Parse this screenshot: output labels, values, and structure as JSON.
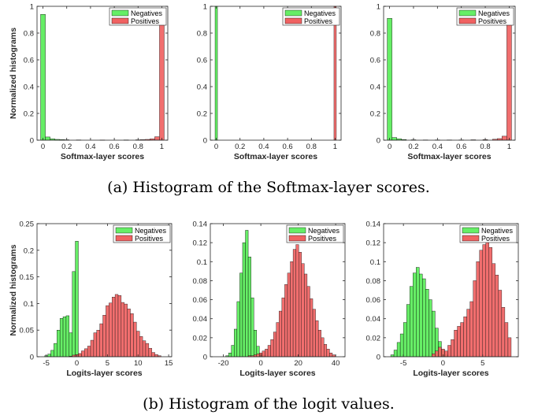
{
  "captions": {
    "a": "(a) Histogram of the Softmax-layer scores.",
    "b": "(b) Histogram of the logit values."
  },
  "colors": {
    "negatives": "#66ee66",
    "positives": "#f06262"
  },
  "chart_data": [
    {
      "type": "bar",
      "subplot": "softmax-1",
      "xlabel": "Softmax-layer scores",
      "ylabel": "Normalized histograms",
      "xlim": [
        -0.05,
        1.05
      ],
      "ylim": [
        0,
        1
      ],
      "xticks": [
        "0",
        "0.2",
        "0.4",
        "0.6",
        "0.8",
        "1"
      ],
      "yticks": [
        "0",
        "0.2",
        "0.4",
        "0.6",
        "0.8",
        "1"
      ],
      "legend": {
        "position": "top-right",
        "entries": [
          "Negatives",
          "Positives"
        ]
      },
      "bin_width": 0.04,
      "series": [
        {
          "name": "Negatives",
          "x": [
            0.0,
            0.04,
            0.08,
            0.12,
            0.16,
            0.2,
            0.3,
            0.5,
            0.7,
            0.9
          ],
          "values": [
            0.94,
            0.024,
            0.01,
            0.006,
            0.004,
            0.003,
            0.002,
            0.001,
            0.001,
            0.001
          ]
        },
        {
          "name": "Positives",
          "x": [
            0.5,
            0.7,
            0.8,
            0.84,
            0.88,
            0.92,
            0.96,
            1.0
          ],
          "values": [
            0.001,
            0.002,
            0.003,
            0.004,
            0.006,
            0.01,
            0.026,
            0.94
          ]
        }
      ]
    },
    {
      "type": "bar",
      "subplot": "softmax-2",
      "xlabel": "Softmax-layer scores",
      "ylabel": "",
      "xlim": [
        -0.05,
        1.05
      ],
      "ylim": [
        0,
        1
      ],
      "xticks": [
        "0",
        "0.2",
        "0.4",
        "0.6",
        "0.8",
        "1"
      ],
      "yticks": [
        "0",
        "0.2",
        "0.4",
        "0.6",
        "0.8",
        "1"
      ],
      "legend": {
        "position": "top-right",
        "entries": [
          "Negatives",
          "Positives"
        ]
      },
      "bin_width": 0.02,
      "series": [
        {
          "name": "Negatives",
          "x": [
            0.0
          ],
          "values": [
            1.0
          ]
        },
        {
          "name": "Positives",
          "x": [
            1.0
          ],
          "values": [
            1.0
          ]
        }
      ]
    },
    {
      "type": "bar",
      "subplot": "softmax-3",
      "xlabel": "Softmax-layer scores",
      "ylabel": "",
      "xlim": [
        -0.05,
        1.05
      ],
      "ylim": [
        0,
        1
      ],
      "xticks": [
        "0",
        "0.2",
        "0.4",
        "0.6",
        "0.8",
        "1"
      ],
      "yticks": [
        "0",
        "0.2",
        "0.4",
        "0.6",
        "0.8",
        "1"
      ],
      "legend": {
        "position": "top-right",
        "entries": [
          "Negatives",
          "Positives"
        ]
      },
      "bin_width": 0.04,
      "series": [
        {
          "name": "Negatives",
          "x": [
            0.0,
            0.04,
            0.08,
            0.12,
            0.2,
            0.4,
            0.6,
            0.8
          ],
          "values": [
            0.91,
            0.02,
            0.01,
            0.005,
            0.003,
            0.002,
            0.002,
            0.002
          ]
        },
        {
          "name": "Positives",
          "x": [
            0.3,
            0.5,
            0.7,
            0.8,
            0.88,
            0.92,
            0.96,
            1.0
          ],
          "values": [
            0.002,
            0.002,
            0.003,
            0.004,
            0.007,
            0.012,
            0.03,
            0.91
          ]
        }
      ]
    },
    {
      "type": "bar",
      "subplot": "logits-1",
      "xlabel": "Logits-layer scores",
      "ylabel": "Normalized histograms",
      "xlim": [
        -6.5,
        15.5
      ],
      "ylim": [
        0,
        0.25
      ],
      "xticks": [
        "-5",
        "0",
        "5",
        "10",
        "15"
      ],
      "yticks": [
        "0",
        "0.05",
        "0.1",
        "0.15",
        "0.2",
        "0.25"
      ],
      "legend": {
        "position": "top-right",
        "entries": [
          "Negatives",
          "Positives"
        ]
      },
      "bin_width": 0.5,
      "series": [
        {
          "name": "Negatives",
          "x": [
            -5.0,
            -4.5,
            -4.0,
            -3.5,
            -3.0,
            -2.5,
            -2.0,
            -1.5,
            -1.0,
            -0.5,
            0.0,
            0.5
          ],
          "values": [
            0.002,
            0.005,
            0.012,
            0.025,
            0.05,
            0.072,
            0.075,
            0.077,
            0.045,
            0.16,
            0.217,
            0.005
          ]
        },
        {
          "name": "Positives",
          "x": [
            -1.0,
            -0.5,
            0.0,
            0.5,
            1.0,
            1.5,
            2.0,
            2.5,
            3.0,
            3.5,
            4.0,
            4.5,
            5.0,
            5.5,
            6.0,
            6.5,
            7.0,
            7.5,
            8.0,
            8.5,
            9.0,
            9.5,
            10.0,
            10.5,
            11.0,
            11.5,
            12.0,
            12.5,
            13.0,
            13.5
          ],
          "values": [
            0.001,
            0.003,
            0.004,
            0.006,
            0.011,
            0.015,
            0.02,
            0.031,
            0.045,
            0.05,
            0.062,
            0.078,
            0.096,
            0.101,
            0.112,
            0.117,
            0.115,
            0.102,
            0.099,
            0.09,
            0.081,
            0.065,
            0.048,
            0.038,
            0.03,
            0.025,
            0.016,
            0.008,
            0.004,
            0.002
          ]
        }
      ]
    },
    {
      "type": "bar",
      "subplot": "logits-2",
      "xlabel": "Logits-layer scores",
      "ylabel": "",
      "xlim": [
        -27,
        45
      ],
      "ylim": [
        0,
        0.14
      ],
      "xticks": [
        "-20",
        "0",
        "20",
        "40"
      ],
      "yticks": [
        "0",
        "0.02",
        "0.04",
        "0.06",
        "0.08",
        "0.1",
        "0.12",
        "0.14"
      ],
      "legend": {
        "position": "top-right",
        "entries": [
          "Negatives",
          "Positives"
        ]
      },
      "bin_width": 1.5,
      "series": [
        {
          "name": "Negatives",
          "x": [
            -18.0,
            -16.5,
            -15.0,
            -13.5,
            -12.0,
            -10.5,
            -9.0,
            -7.5,
            -6.0,
            -4.5,
            -3.0,
            -1.5,
            0.0,
            1.5
          ],
          "values": [
            0.001,
            0.004,
            0.012,
            0.029,
            0.058,
            0.088,
            0.12,
            0.133,
            0.105,
            0.062,
            0.028,
            0.011,
            0.003,
            0.001
          ]
        },
        {
          "name": "Positives",
          "x": [
            -6.0,
            -4.5,
            -3.0,
            -1.5,
            0.0,
            1.5,
            3.0,
            4.5,
            6.0,
            7.5,
            9.0,
            10.5,
            12.0,
            13.5,
            15.0,
            16.5,
            18.0,
            19.5,
            21.0,
            22.5,
            24.0,
            25.5,
            27.0,
            28.5,
            30.0,
            31.5,
            33.0,
            34.5,
            36.0,
            37.5,
            39.0
          ],
          "values": [
            0.001,
            0.001,
            0.002,
            0.003,
            0.004,
            0.006,
            0.008,
            0.012,
            0.018,
            0.026,
            0.036,
            0.048,
            0.062,
            0.076,
            0.088,
            0.1,
            0.113,
            0.118,
            0.11,
            0.098,
            0.087,
            0.074,
            0.061,
            0.05,
            0.038,
            0.028,
            0.02,
            0.013,
            0.008,
            0.004,
            0.002
          ]
        }
      ]
    },
    {
      "type": "bar",
      "subplot": "logits-3",
      "xlabel": "Logits-layer scores",
      "ylabel": "",
      "xlim": [
        -7.5,
        9.5
      ],
      "ylim": [
        0,
        0.14
      ],
      "xticks": [
        "-5",
        "0",
        "5"
      ],
      "yticks": [
        "0",
        "0.02",
        "0.04",
        "0.06",
        "0.08",
        "0.1",
        "0.12",
        "0.14"
      ],
      "legend": {
        "position": "top-right",
        "entries": [
          "Negatives",
          "Positives"
        ]
      },
      "bin_width": 0.4,
      "series": [
        {
          "name": "Negatives",
          "x": [
            -6.4,
            -6.0,
            -5.6,
            -5.2,
            -4.8,
            -4.4,
            -4.0,
            -3.6,
            -3.2,
            -2.8,
            -2.4,
            -2.0,
            -1.6,
            -1.2,
            -0.8,
            -0.4,
            0.0,
            0.4
          ],
          "values": [
            0.002,
            0.007,
            0.015,
            0.024,
            0.036,
            0.055,
            0.074,
            0.088,
            0.094,
            0.087,
            0.082,
            0.071,
            0.06,
            0.048,
            0.03,
            0.016,
            0.007,
            0.002
          ]
        },
        {
          "name": "Positives",
          "x": [
            -1.2,
            -0.8,
            -0.4,
            0.0,
            0.4,
            0.8,
            1.2,
            1.6,
            2.0,
            2.4,
            2.8,
            3.2,
            3.6,
            4.0,
            4.4,
            4.8,
            5.2,
            5.6,
            6.0,
            6.4,
            6.8,
            7.2,
            7.6,
            8.0,
            8.4
          ],
          "values": [
            0.003,
            0.006,
            0.01,
            0.008,
            0.006,
            0.012,
            0.018,
            0.028,
            0.032,
            0.036,
            0.042,
            0.05,
            0.058,
            0.08,
            0.1,
            0.112,
            0.118,
            0.124,
            0.115,
            0.098,
            0.086,
            0.07,
            0.052,
            0.036,
            0.02
          ]
        }
      ]
    }
  ]
}
